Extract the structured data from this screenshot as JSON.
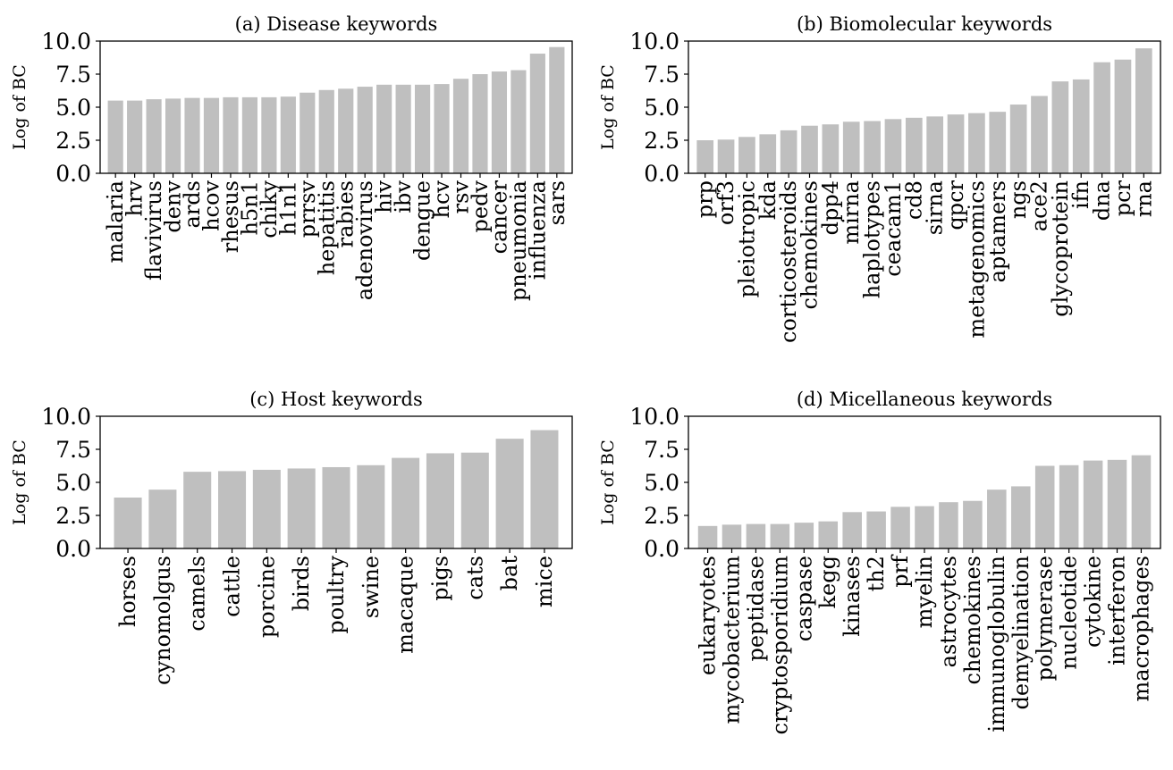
{
  "figure": {
    "background": "#ffffff",
    "bar_color": "#bfbfbf",
    "axis_color": "#000000"
  },
  "chart_data": [
    {
      "type": "bar",
      "title": "(a) Disease keywords",
      "ylabel": "Log of BC",
      "ylim": [
        0,
        10
      ],
      "yticks": [
        "0.0",
        "2.5",
        "5.0",
        "7.5",
        "10.0"
      ],
      "categories": [
        "malaria",
        "hrv",
        "flavivirus",
        "denv",
        "ards",
        "hcov",
        "rhesus",
        "h5n1",
        "chiky",
        "h1n1",
        "prrsv",
        "hepatitis",
        "rabies",
        "adenovirus",
        "hiv",
        "ibv",
        "dengue",
        "hcv",
        "rsv",
        "pedv",
        "cancer",
        "pneumonia",
        "influenza",
        "sars"
      ],
      "values": [
        5.5,
        5.5,
        5.6,
        5.65,
        5.7,
        5.7,
        5.75,
        5.75,
        5.75,
        5.8,
        6.1,
        6.3,
        6.4,
        6.55,
        6.7,
        6.7,
        6.7,
        6.75,
        7.15,
        7.5,
        7.7,
        7.8,
        9.05,
        9.55
      ]
    },
    {
      "type": "bar",
      "title": "(b) Biomolecular keywords",
      "ylabel": "Log of BC",
      "ylim": [
        0,
        10
      ],
      "yticks": [
        "0.0",
        "2.5",
        "5.0",
        "7.5",
        "10.0"
      ],
      "categories": [
        "prp",
        "orf3",
        "pleiotropic",
        "kda",
        "corticosteroids",
        "chemokines",
        "dpp4",
        "mirna",
        "haplotypes",
        "ceacam1",
        "cd8",
        "sirna",
        "qpcr",
        "metagenomics",
        "aptamers",
        "ngs",
        "ace2",
        "glycoprotein",
        "ifn",
        "dna",
        "pcr",
        "rna"
      ],
      "values": [
        2.5,
        2.55,
        2.75,
        2.95,
        3.25,
        3.6,
        3.7,
        3.9,
        3.95,
        4.1,
        4.2,
        4.3,
        4.45,
        4.55,
        4.65,
        5.2,
        5.85,
        6.95,
        7.1,
        8.4,
        8.6,
        9.45
      ]
    },
    {
      "type": "bar",
      "title": "(c) Host keywords",
      "ylabel": "Log of BC",
      "ylim": [
        0,
        10
      ],
      "yticks": [
        "0.0",
        "2.5",
        "5.0",
        "7.5",
        "10.0"
      ],
      "categories": [
        "horses",
        "cynomolgus",
        "camels",
        "cattle",
        "porcine",
        "birds",
        "poultry",
        "swine",
        "macaque",
        "pigs",
        "cats",
        "bat",
        "mice"
      ],
      "values": [
        3.85,
        4.45,
        5.8,
        5.85,
        5.95,
        6.05,
        6.15,
        6.3,
        6.85,
        7.2,
        7.25,
        8.3,
        8.95
      ]
    },
    {
      "type": "bar",
      "title": "(d) Micellaneous keywords",
      "ylabel": "Log of BC",
      "ylim": [
        0,
        10
      ],
      "yticks": [
        "0.0",
        "2.5",
        "5.0",
        "7.5",
        "10.0"
      ],
      "categories": [
        "eukaryotes",
        "mycobacterium",
        "peptidase",
        "cryptosporidium",
        "caspase",
        "kegg",
        "kinases",
        "th2",
        "prf",
        "myelin",
        "astrocytes",
        "chemokines",
        "immunoglobulin",
        "demyelination",
        "polymerase",
        "nucleotide",
        "cytokine",
        "interferon",
        "macrophages"
      ],
      "values": [
        1.7,
        1.8,
        1.85,
        1.85,
        1.95,
        2.05,
        2.75,
        2.8,
        3.15,
        3.2,
        3.5,
        3.6,
        4.45,
        4.7,
        6.25,
        6.3,
        6.65,
        6.7,
        7.05
      ]
    }
  ]
}
